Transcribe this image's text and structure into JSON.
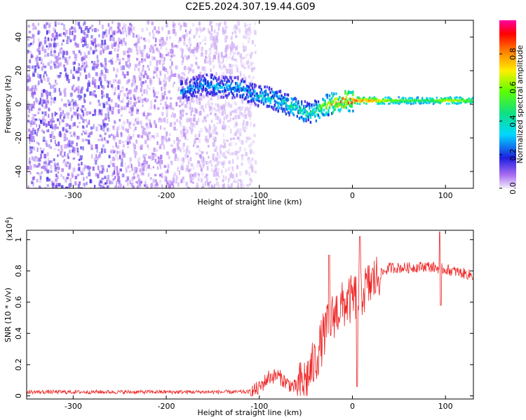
{
  "title": "C2E5.2024.307.19.44.G09",
  "chart_data": [
    {
      "type": "heatmap",
      "xlabel": "Height of straight line (km)",
      "ylabel": "Frequency (Hz)",
      "xlim": [
        -350,
        130
      ],
      "ylim": [
        -50,
        50
      ],
      "xticks": [
        -300,
        -200,
        -100,
        0,
        100
      ],
      "yticks": [
        -40,
        -20,
        0,
        20,
        40
      ],
      "colorbar": {
        "label": "Normalized spectral amplitude",
        "ticks": [
          0.0,
          0.2,
          0.4,
          0.6,
          0.8
        ],
        "range": [
          0,
          1
        ]
      },
      "ridge": [
        {
          "x": -180,
          "y": 8
        },
        {
          "x": -160,
          "y": 12
        },
        {
          "x": -140,
          "y": 10
        },
        {
          "x": -120,
          "y": 10
        },
        {
          "x": -110,
          "y": 6
        },
        {
          "x": -90,
          "y": 4
        },
        {
          "x": -70,
          "y": 0
        },
        {
          "x": -50,
          "y": -5
        },
        {
          "x": -40,
          "y": -4
        },
        {
          "x": -30,
          "y": -1
        },
        {
          "x": -20,
          "y": 1
        },
        {
          "x": -10,
          "y": 2
        },
        {
          "x": 0,
          "y": 2
        },
        {
          "x": 20,
          "y": 2
        },
        {
          "x": 60,
          "y": 2
        },
        {
          "x": 90,
          "y": 2
        },
        {
          "x": 130,
          "y": 2
        }
      ],
      "band_amplitude": [
        {
          "x": -180,
          "v": 0.3
        },
        {
          "x": -110,
          "v": 0.35
        },
        {
          "x": -60,
          "v": 0.45
        },
        {
          "x": -40,
          "v": 0.5
        },
        {
          "x": -20,
          "v": 0.8
        },
        {
          "x": -10,
          "v": 0.95
        },
        {
          "x": 0,
          "v": 0.9
        },
        {
          "x": 20,
          "v": 0.8
        },
        {
          "x": 40,
          "v": 0.6
        },
        {
          "x": 80,
          "v": 0.5
        },
        {
          "x": 100,
          "v": 0.7
        },
        {
          "x": 130,
          "v": 0.55
        }
      ]
    },
    {
      "type": "line",
      "xlabel": "Height of straight line (km)",
      "ylabel": "SNR (10 * v/v)",
      "yunit": "(x10",
      "yunit_exp": "4",
      "xlim": [
        -350,
        130
      ],
      "ylim": [
        -0.02,
        1.06
      ],
      "xticks": [
        -300,
        -200,
        -100,
        0,
        100
      ],
      "yticks": [
        0.0,
        0.2,
        0.4,
        0.6,
        0.8,
        1.0
      ],
      "series": [
        {
          "color": "#ee2222",
          "trend": [
            {
              "x": -350,
              "y": 0.02
            },
            {
              "x": -110,
              "y": 0.02
            },
            {
              "x": -100,
              "y": 0.05
            },
            {
              "x": -90,
              "y": 0.12
            },
            {
              "x": -80,
              "y": 0.13
            },
            {
              "x": -70,
              "y": 0.08
            },
            {
              "x": -60,
              "y": 0.05
            },
            {
              "x": -50,
              "y": 0.1
            },
            {
              "x": -40,
              "y": 0.22
            },
            {
              "x": -30,
              "y": 0.4
            },
            {
              "x": -20,
              "y": 0.52
            },
            {
              "x": -10,
              "y": 0.58
            },
            {
              "x": 0,
              "y": 0.62
            },
            {
              "x": 10,
              "y": 0.66
            },
            {
              "x": 20,
              "y": 0.72
            },
            {
              "x": 30,
              "y": 0.78
            },
            {
              "x": 40,
              "y": 0.82
            },
            {
              "x": 60,
              "y": 0.82
            },
            {
              "x": 80,
              "y": 0.83
            },
            {
              "x": 100,
              "y": 0.81
            },
            {
              "x": 130,
              "y": 0.77
            }
          ],
          "spikes": [
            {
              "x": -25,
              "y": 0.9
            },
            {
              "x": 8,
              "y": 1.02
            },
            {
              "x": 5,
              "y": 0.06
            },
            {
              "x": 94,
              "y": 1.05
            },
            {
              "x": 95,
              "y": 0.58
            }
          ]
        }
      ]
    }
  ]
}
